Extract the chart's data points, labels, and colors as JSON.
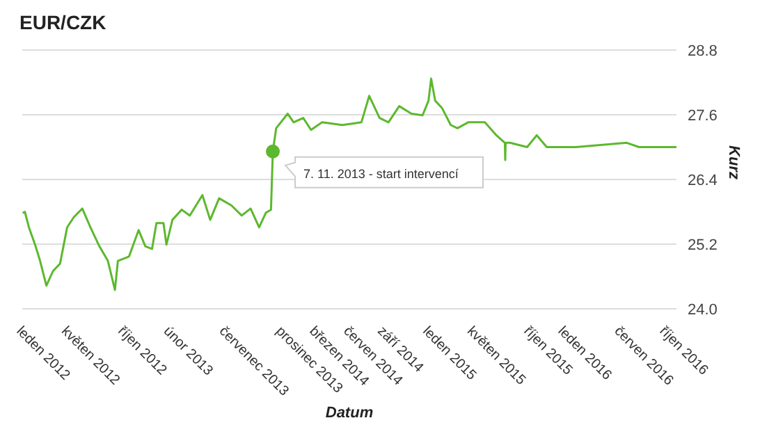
{
  "chart_data": {
    "type": "line",
    "title": "EUR/CZK",
    "xlabel": "Datum",
    "ylabel": "Kurz",
    "x": [
      "2012-01-02",
      "2012-01-08",
      "2012-01-19",
      "2012-02-06",
      "2012-02-18",
      "2012-03-06",
      "2012-03-24",
      "2012-04-12",
      "2012-05-01",
      "2012-05-19",
      "2012-06-11",
      "2012-07-03",
      "2012-07-27",
      "2012-08-19",
      "2012-09-07",
      "2012-09-15",
      "2012-10-15",
      "2012-11-10",
      "2012-11-28",
      "2012-12-16",
      "2012-12-28",
      "2013-01-16",
      "2013-01-24",
      "2013-02-09",
      "2013-03-06",
      "2013-03-28",
      "2013-05-01",
      "2013-05-22",
      "2013-06-15",
      "2013-07-18",
      "2013-08-15",
      "2013-09-08",
      "2013-10-01",
      "2013-10-19",
      "2013-11-02",
      "2013-11-07",
      "2013-11-16",
      "2013-12-17",
      "2014-01-02",
      "2014-01-28",
      "2014-02-18",
      "2014-03-20",
      "2014-05-13",
      "2014-07-04",
      "2014-07-25",
      "2014-08-22",
      "2014-09-15",
      "2014-10-14",
      "2014-11-16",
      "2014-12-16",
      "2015-01-01",
      "2015-01-08",
      "2015-01-19",
      "2015-02-06",
      "2015-03-02",
      "2015-03-20",
      "2015-04-18",
      "2015-06-02",
      "2015-07-03",
      "2015-07-26",
      "2015-07-27",
      "2015-07-28",
      "2015-08-09",
      "2015-09-24",
      "2015-10-20",
      "2015-11-16",
      "2016-02-02",
      "2016-06-19",
      "2016-07-22",
      "2016-10-31"
    ],
    "series": [
      {
        "color": "#5cb82e",
        "values": [
          25.78,
          25.8,
          25.51,
          25.16,
          24.89,
          24.43,
          24.7,
          24.84,
          25.51,
          25.7,
          25.86,
          25.51,
          25.16,
          24.89,
          24.35,
          24.89,
          24.97,
          25.46,
          25.16,
          25.11,
          25.59,
          25.59,
          25.19,
          25.65,
          25.84,
          25.73,
          26.11,
          25.65,
          26.05,
          25.92,
          25.73,
          25.86,
          25.51,
          25.78,
          25.84,
          26.92,
          27.35,
          27.62,
          27.46,
          27.54,
          27.32,
          27.46,
          27.41,
          27.46,
          27.95,
          27.54,
          27.46,
          27.76,
          27.62,
          27.59,
          27.86,
          28.27,
          27.86,
          27.73,
          27.41,
          27.35,
          27.46,
          27.46,
          27.22,
          27.08,
          26.76,
          27.08,
          27.08,
          27.0,
          27.22,
          27.0,
          27.0,
          27.08,
          27.0,
          27.0
        ]
      }
    ],
    "xlim": [
      "2012-01-01",
      "2016-10-31"
    ],
    "xticks": [
      {
        "value": "2012-01-01",
        "label": "leden 2012"
      },
      {
        "value": "2012-05-01",
        "label": "květen 2012"
      },
      {
        "value": "2012-10-01",
        "label": "říjen 2012"
      },
      {
        "value": "2013-02-01",
        "label": "únor 2013"
      },
      {
        "value": "2013-07-01",
        "label": "červenec 2013"
      },
      {
        "value": "2013-12-01",
        "label": "prosinec 2013"
      },
      {
        "value": "2014-03-01",
        "label": "březen 2014"
      },
      {
        "value": "2014-06-01",
        "label": "červen 2014"
      },
      {
        "value": "2014-09-01",
        "label": "září 2014"
      },
      {
        "value": "2015-01-01",
        "label": "leden 2015"
      },
      {
        "value": "2015-05-01",
        "label": "květen 2015"
      },
      {
        "value": "2015-10-01",
        "label": "říjen 2015"
      },
      {
        "value": "2016-01-01",
        "label": "leden 2016"
      },
      {
        "value": "2016-06-01",
        "label": "červen 2016"
      },
      {
        "value": "2016-10-01",
        "label": "říjen 2016"
      }
    ],
    "ylim": [
      24,
      28.8
    ],
    "yticks": [
      {
        "value": 24,
        "label": "24.0"
      },
      25.2,
      26.4,
      27.6,
      28.8
    ],
    "grid": "y",
    "annotations": [
      {
        "text": "7. 11. 2013 - start intervencí",
        "x": "2013-11-07",
        "y": 26.92
      }
    ]
  }
}
